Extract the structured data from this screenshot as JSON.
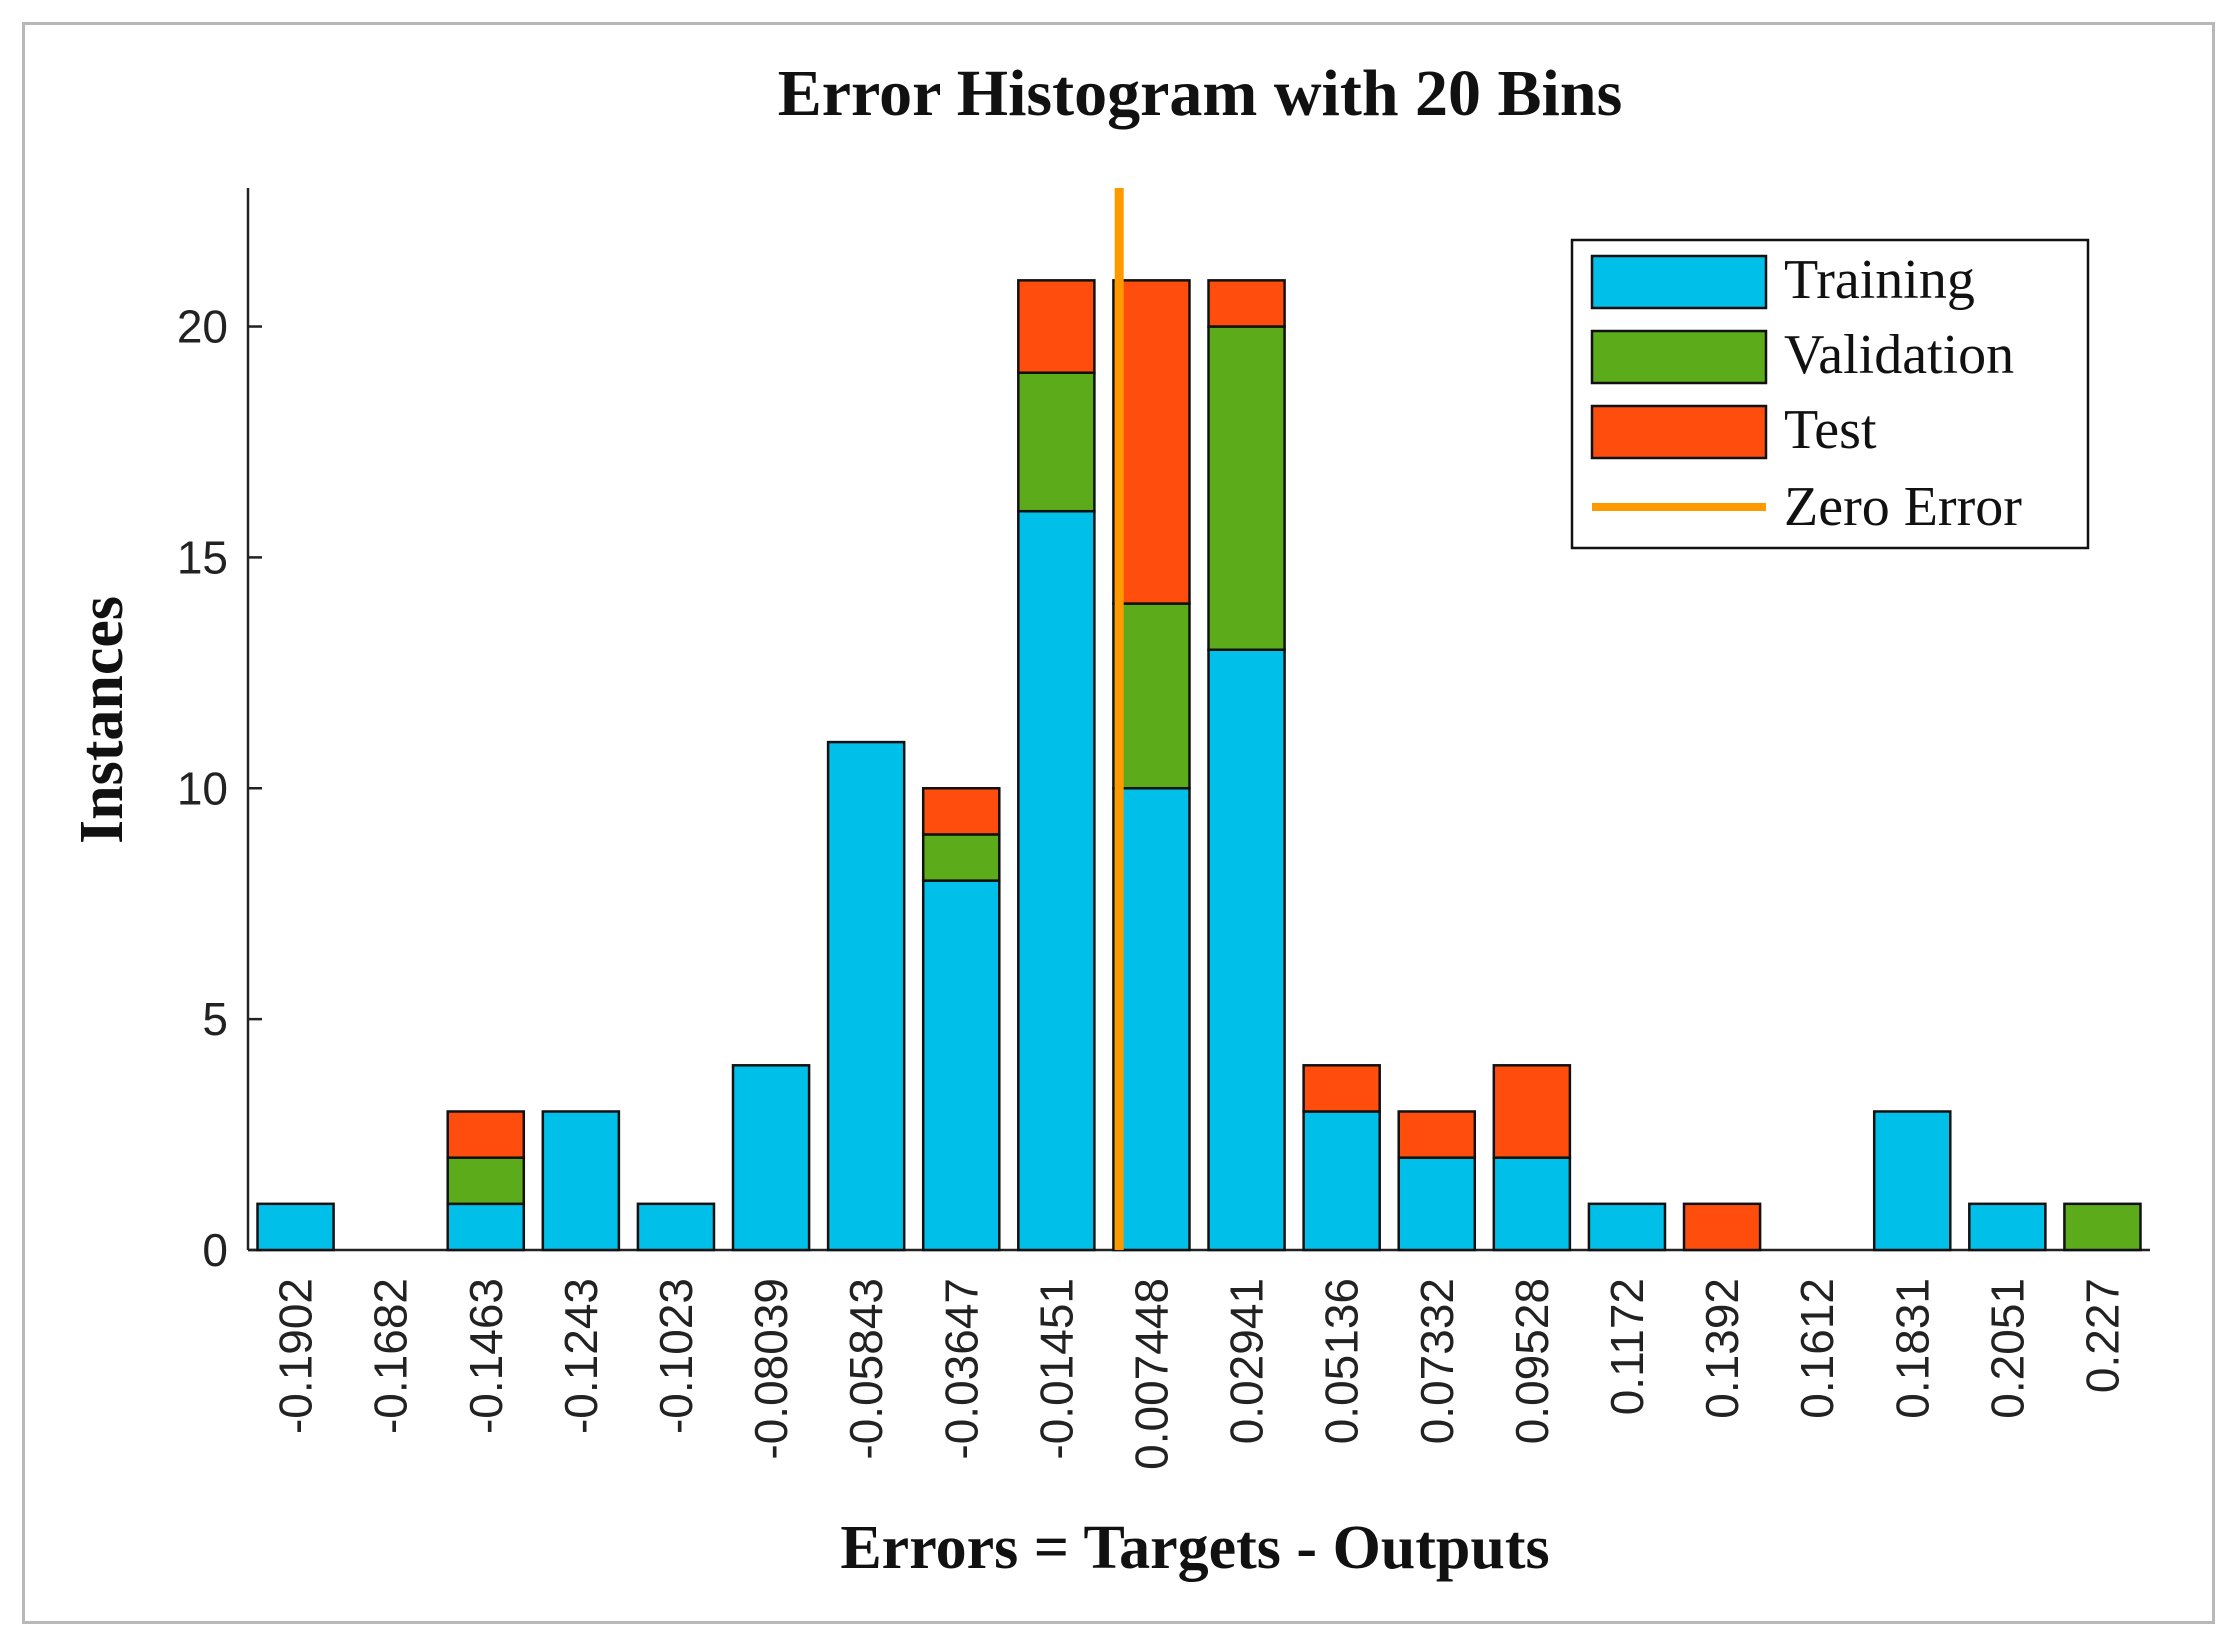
{
  "chart_data": {
    "type": "bar",
    "stacked": true,
    "title": "Error Histogram with 20 Bins",
    "xlabel": "Errors = Targets - Outputs",
    "ylabel": "Instances",
    "ylim": [
      0,
      23
    ],
    "y_ticks": [
      "0",
      "5",
      "10",
      "15",
      "20"
    ],
    "categories": [
      "-0.1902",
      "-0.1682",
      "-0.1463",
      "-0.1243",
      "-0.1023",
      "-0.08039",
      "-0.05843",
      "-0.03647",
      "-0.01451",
      "0.007448",
      "0.02941",
      "0.05136",
      "0.07332",
      "0.09528",
      "0.1172",
      "0.1392",
      "0.1612",
      "0.1831",
      "0.2051",
      "0.227"
    ],
    "series": [
      {
        "name": "Training",
        "color": "#00bfe8",
        "values": [
          1,
          0,
          1,
          3,
          1,
          4,
          11,
          8,
          16,
          10,
          13,
          3,
          2,
          2,
          1,
          0,
          0,
          3,
          1,
          0
        ]
      },
      {
        "name": "Validation",
        "color": "#5cab1a",
        "values": [
          0,
          0,
          1,
          0,
          0,
          0,
          0,
          1,
          3,
          4,
          7,
          0,
          0,
          0,
          0,
          0,
          0,
          0,
          0,
          1
        ]
      },
      {
        "name": "Test",
        "color": "#ff4d0d",
        "values": [
          0,
          0,
          1,
          0,
          0,
          0,
          0,
          1,
          2,
          7,
          1,
          1,
          1,
          2,
          0,
          1,
          0,
          0,
          0,
          0
        ]
      }
    ],
    "zero_error": {
      "name": "Zero Error",
      "x": 0,
      "color": "#ff9900"
    },
    "legend_position": "top-right",
    "grid": false
  }
}
